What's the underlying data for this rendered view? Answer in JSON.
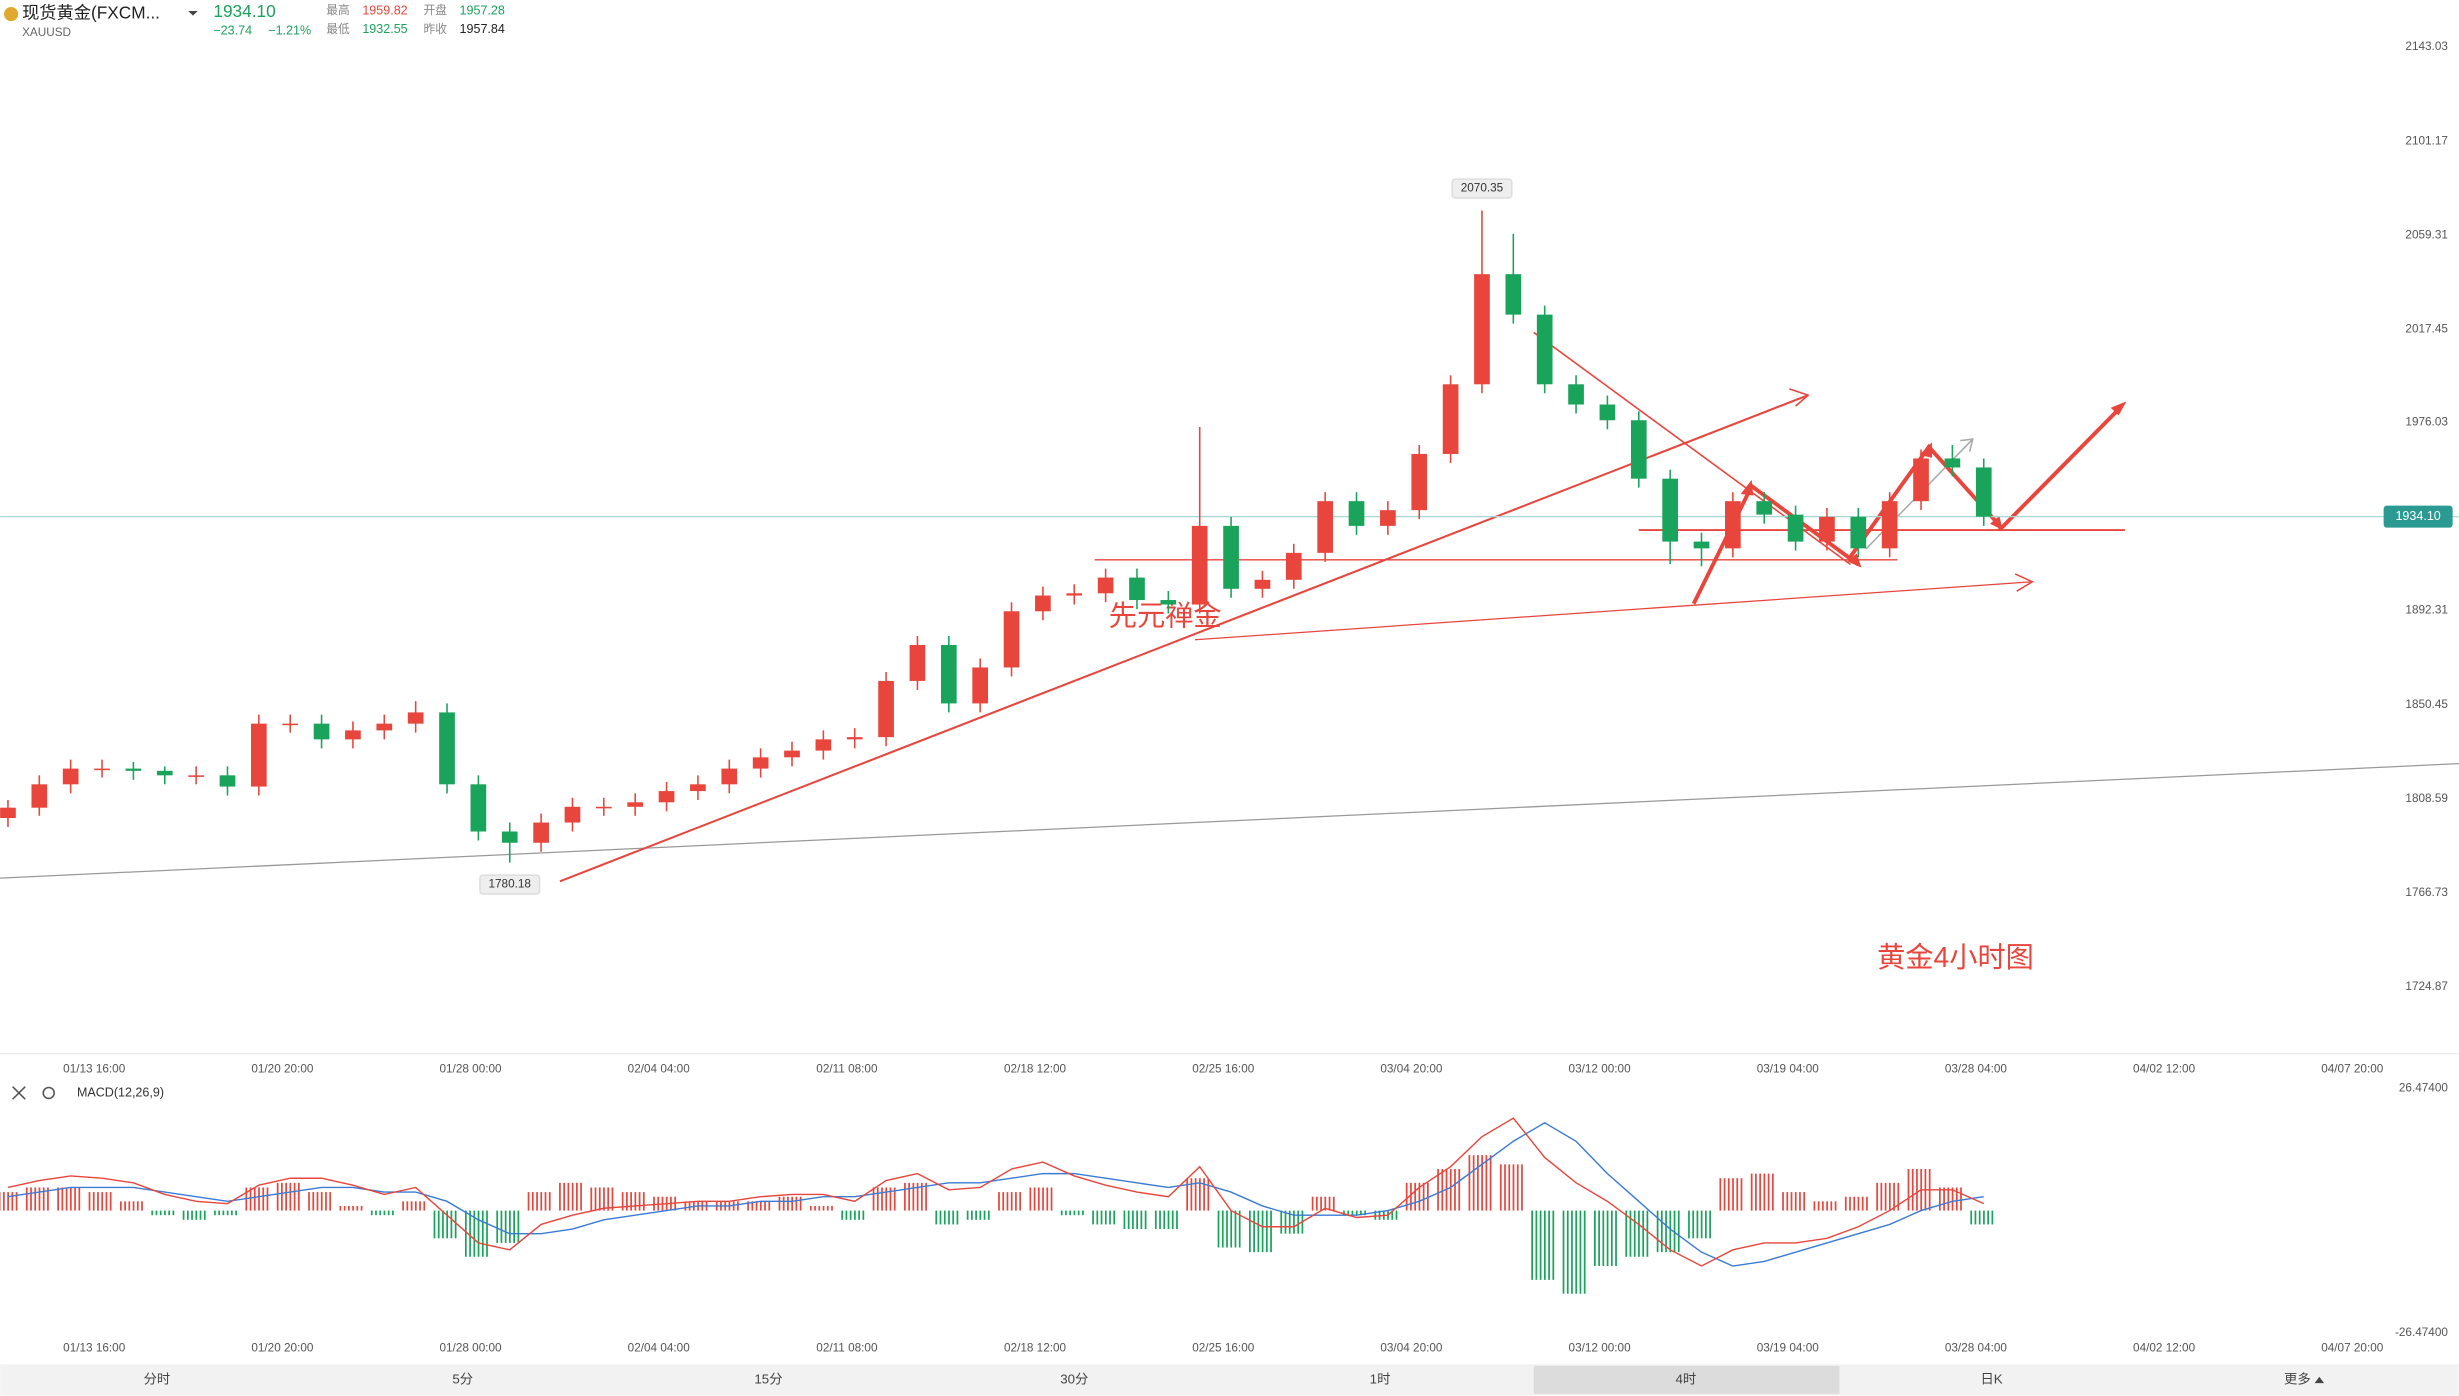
{
  "header": {
    "title": "现货黄金(FXCM...",
    "symbol": "XAUUSD",
    "price": "1934.10",
    "change": "−23.74",
    "change_pct": "−1.21%",
    "high_label": "最高",
    "high": "1959.82",
    "open_label": "开盘",
    "open": "1957.28",
    "low_label": "最低",
    "low": "1932.55",
    "prev_label": "昨收",
    "prev": "1957.84"
  },
  "chart_data": [
    {
      "type": "candlestick",
      "up_color": "#e8453c",
      "down_color": "#19a35b",
      "ylim": [
        1696.5,
        2164
      ],
      "yticks": [
        2143.03,
        2101.17,
        2059.31,
        2017.45,
        1976.03,
        1892.31,
        1850.45,
        1808.59,
        1766.73,
        1724.87
      ],
      "current": {
        "value": 1934.1,
        "label": "1934.10"
      },
      "xticks": [
        "01/13 16:00",
        "01/20 20:00",
        "01/28 00:00",
        "02/04 04:00",
        "02/11 08:00",
        "02/18 12:00",
        "02/25 16:00",
        "03/04 20:00",
        "03/12 00:00",
        "03/19 04:00",
        "03/28 04:00",
        "04/02 12:00",
        "04/07 20:00"
      ],
      "open": [
        1800,
        1804.6,
        1815,
        1822,
        1822,
        1821,
        1819,
        1819,
        1814,
        1842,
        1842,
        1835,
        1839,
        1842,
        1847,
        1815,
        1794,
        1789,
        1798,
        1805,
        1805,
        1807,
        1812,
        1815,
        1822,
        1827,
        1830,
        1835,
        1836,
        1861,
        1877,
        1851,
        1867,
        1892,
        1899,
        1900,
        1907,
        1897,
        1895,
        1930,
        1902,
        1906,
        1918,
        1941,
        1930,
        1937,
        1962,
        1993,
        2042,
        2024,
        1993,
        1984,
        1977,
        1951,
        1923,
        1920,
        1941,
        1935,
        1923,
        1934,
        1920,
        1941,
        1960,
        1956
      ],
      "close": [
        1804.6,
        1815,
        1822,
        1822,
        1821,
        1819,
        1819,
        1814,
        1842,
        1842,
        1835,
        1839,
        1842,
        1847,
        1815,
        1794,
        1789,
        1798,
        1805,
        1805,
        1807,
        1812,
        1815,
        1822,
        1827,
        1830,
        1835,
        1836,
        1861,
        1877,
        1851,
        1867,
        1892,
        1899,
        1900,
        1907,
        1897,
        1895,
        1930,
        1902,
        1906,
        1918,
        1941,
        1930,
        1937,
        1962,
        1993,
        2042,
        2024,
        1993,
        1984,
        1977,
        1951,
        1923,
        1920,
        1941,
        1935,
        1923,
        1934,
        1920,
        1941,
        1960,
        1956,
        1934.1
      ],
      "high": [
        1808,
        1819,
        1826,
        1826,
        1825,
        1823,
        1823,
        1823,
        1846,
        1846,
        1846,
        1843,
        1846,
        1852,
        1851,
        1819,
        1798,
        1802,
        1809,
        1809,
        1811,
        1816,
        1819,
        1826,
        1831,
        1834,
        1839,
        1840,
        1865,
        1881,
        1881,
        1871,
        1896,
        1903,
        1904,
        1911,
        1911,
        1901,
        1974,
        1934,
        1910,
        1922,
        1945,
        1945,
        1941,
        1966,
        1997,
        2070.35,
        2060,
        2028,
        1997,
        1988,
        1981,
        1955,
        1927,
        1945,
        1945,
        1939,
        1938,
        1938,
        1945,
        1964,
        1966,
        1960
      ],
      "low": [
        1796,
        1801,
        1811,
        1818,
        1817,
        1815,
        1815,
        1810,
        1810,
        1838,
        1831,
        1831,
        1835,
        1838,
        1811,
        1790,
        1780.18,
        1785,
        1794,
        1801,
        1801,
        1803,
        1808,
        1811,
        1818,
        1823,
        1826,
        1831,
        1832,
        1857,
        1847,
        1847,
        1863,
        1888,
        1895,
        1896,
        1893,
        1891,
        1891,
        1898,
        1898,
        1902,
        1914,
        1926,
        1926,
        1933,
        1958,
        1989,
        2020,
        1989,
        1980,
        1973,
        1947,
        1913,
        1912,
        1916,
        1931,
        1919,
        1919,
        1916,
        1916,
        1937,
        1952,
        1930
      ]
    },
    {
      "type": "macd",
      "label": "MACD(12,26,9)",
      "up_color": "#e8453c",
      "down_color": "#19a35b",
      "dif_color": "#e8453c",
      "dea_color": "#3a7bd5",
      "ylim": [
        -26.474,
        26.474
      ],
      "yticks": [
        {
          "value": 26.474,
          "label": "26.47400"
        },
        {
          "value": -26.474,
          "label": "-26.47400"
        }
      ],
      "xticks": [
        "01/13 16:00",
        "01/20 20:00",
        "01/28 00:00",
        "02/04 04:00",
        "02/11 08:00",
        "02/18 12:00",
        "02/25 16:00",
        "03/04 20:00",
        "03/12 00:00",
        "03/19 04:00",
        "03/28 04:00",
        "04/02 12:00",
        "04/07 20:00"
      ],
      "hist": [
        4,
        5,
        5,
        4,
        2,
        -1,
        -2,
        -1,
        5,
        6,
        4,
        1,
        -1,
        2,
        -6,
        -10,
        -7,
        4,
        6,
        5,
        4,
        3,
        2,
        2,
        2,
        3,
        1,
        -2,
        5,
        6,
        -3,
        -2,
        4,
        5,
        -1,
        -3,
        -4,
        -4,
        7,
        -8,
        -9,
        -5,
        3,
        -1,
        -2,
        6,
        9,
        12,
        10,
        -15,
        -18,
        -12,
        -10,
        -9,
        -6,
        7,
        8,
        4,
        2,
        3,
        6,
        9,
        5,
        -3
      ],
      "dea": [
        3,
        4,
        5,
        5,
        5,
        4,
        3,
        2,
        3,
        4,
        5,
        5,
        4,
        4,
        2,
        -2,
        -5,
        -5,
        -4,
        -2,
        -1,
        0,
        1,
        1,
        2,
        2,
        3,
        3,
        4,
        5,
        6,
        6,
        7,
        8,
        8,
        7,
        6,
        5,
        6,
        4,
        1,
        -1,
        -1,
        -1,
        0,
        2,
        5,
        10,
        15,
        19,
        15,
        8,
        2,
        -4,
        -9,
        -12,
        -11,
        -9,
        -7,
        -5,
        -3,
        0,
        2,
        3
      ],
      "dif": [
        5,
        6.5,
        7.5,
        7,
        6,
        3.5,
        2,
        1.5,
        5.5,
        7,
        7,
        5.5,
        3.5,
        5,
        -1,
        -7,
        -8.5,
        -3,
        -1,
        0.5,
        1,
        1.5,
        2,
        2,
        3,
        3.5,
        3.5,
        2,
        6.5,
        8,
        4.5,
        5,
        9,
        10.5,
        7.5,
        5.5,
        4,
        3,
        9.5,
        0,
        -3.5,
        -3.5,
        0.5,
        -1.5,
        -1,
        5,
        9.5,
        16,
        20,
        11.5,
        6,
        2,
        -3,
        -8.5,
        -12,
        -8.5,
        -7,
        -7,
        -6,
        -3.5,
        0,
        4.5,
        4.5,
        1.5
      ]
    }
  ],
  "annotations": {
    "note": "先元禅金",
    "caption": "黄金4小时图"
  },
  "tabs": [
    "分时",
    "5分",
    "15分",
    "30分",
    "1时",
    "4时",
    "日K",
    "更多"
  ],
  "active_tab": 5
}
